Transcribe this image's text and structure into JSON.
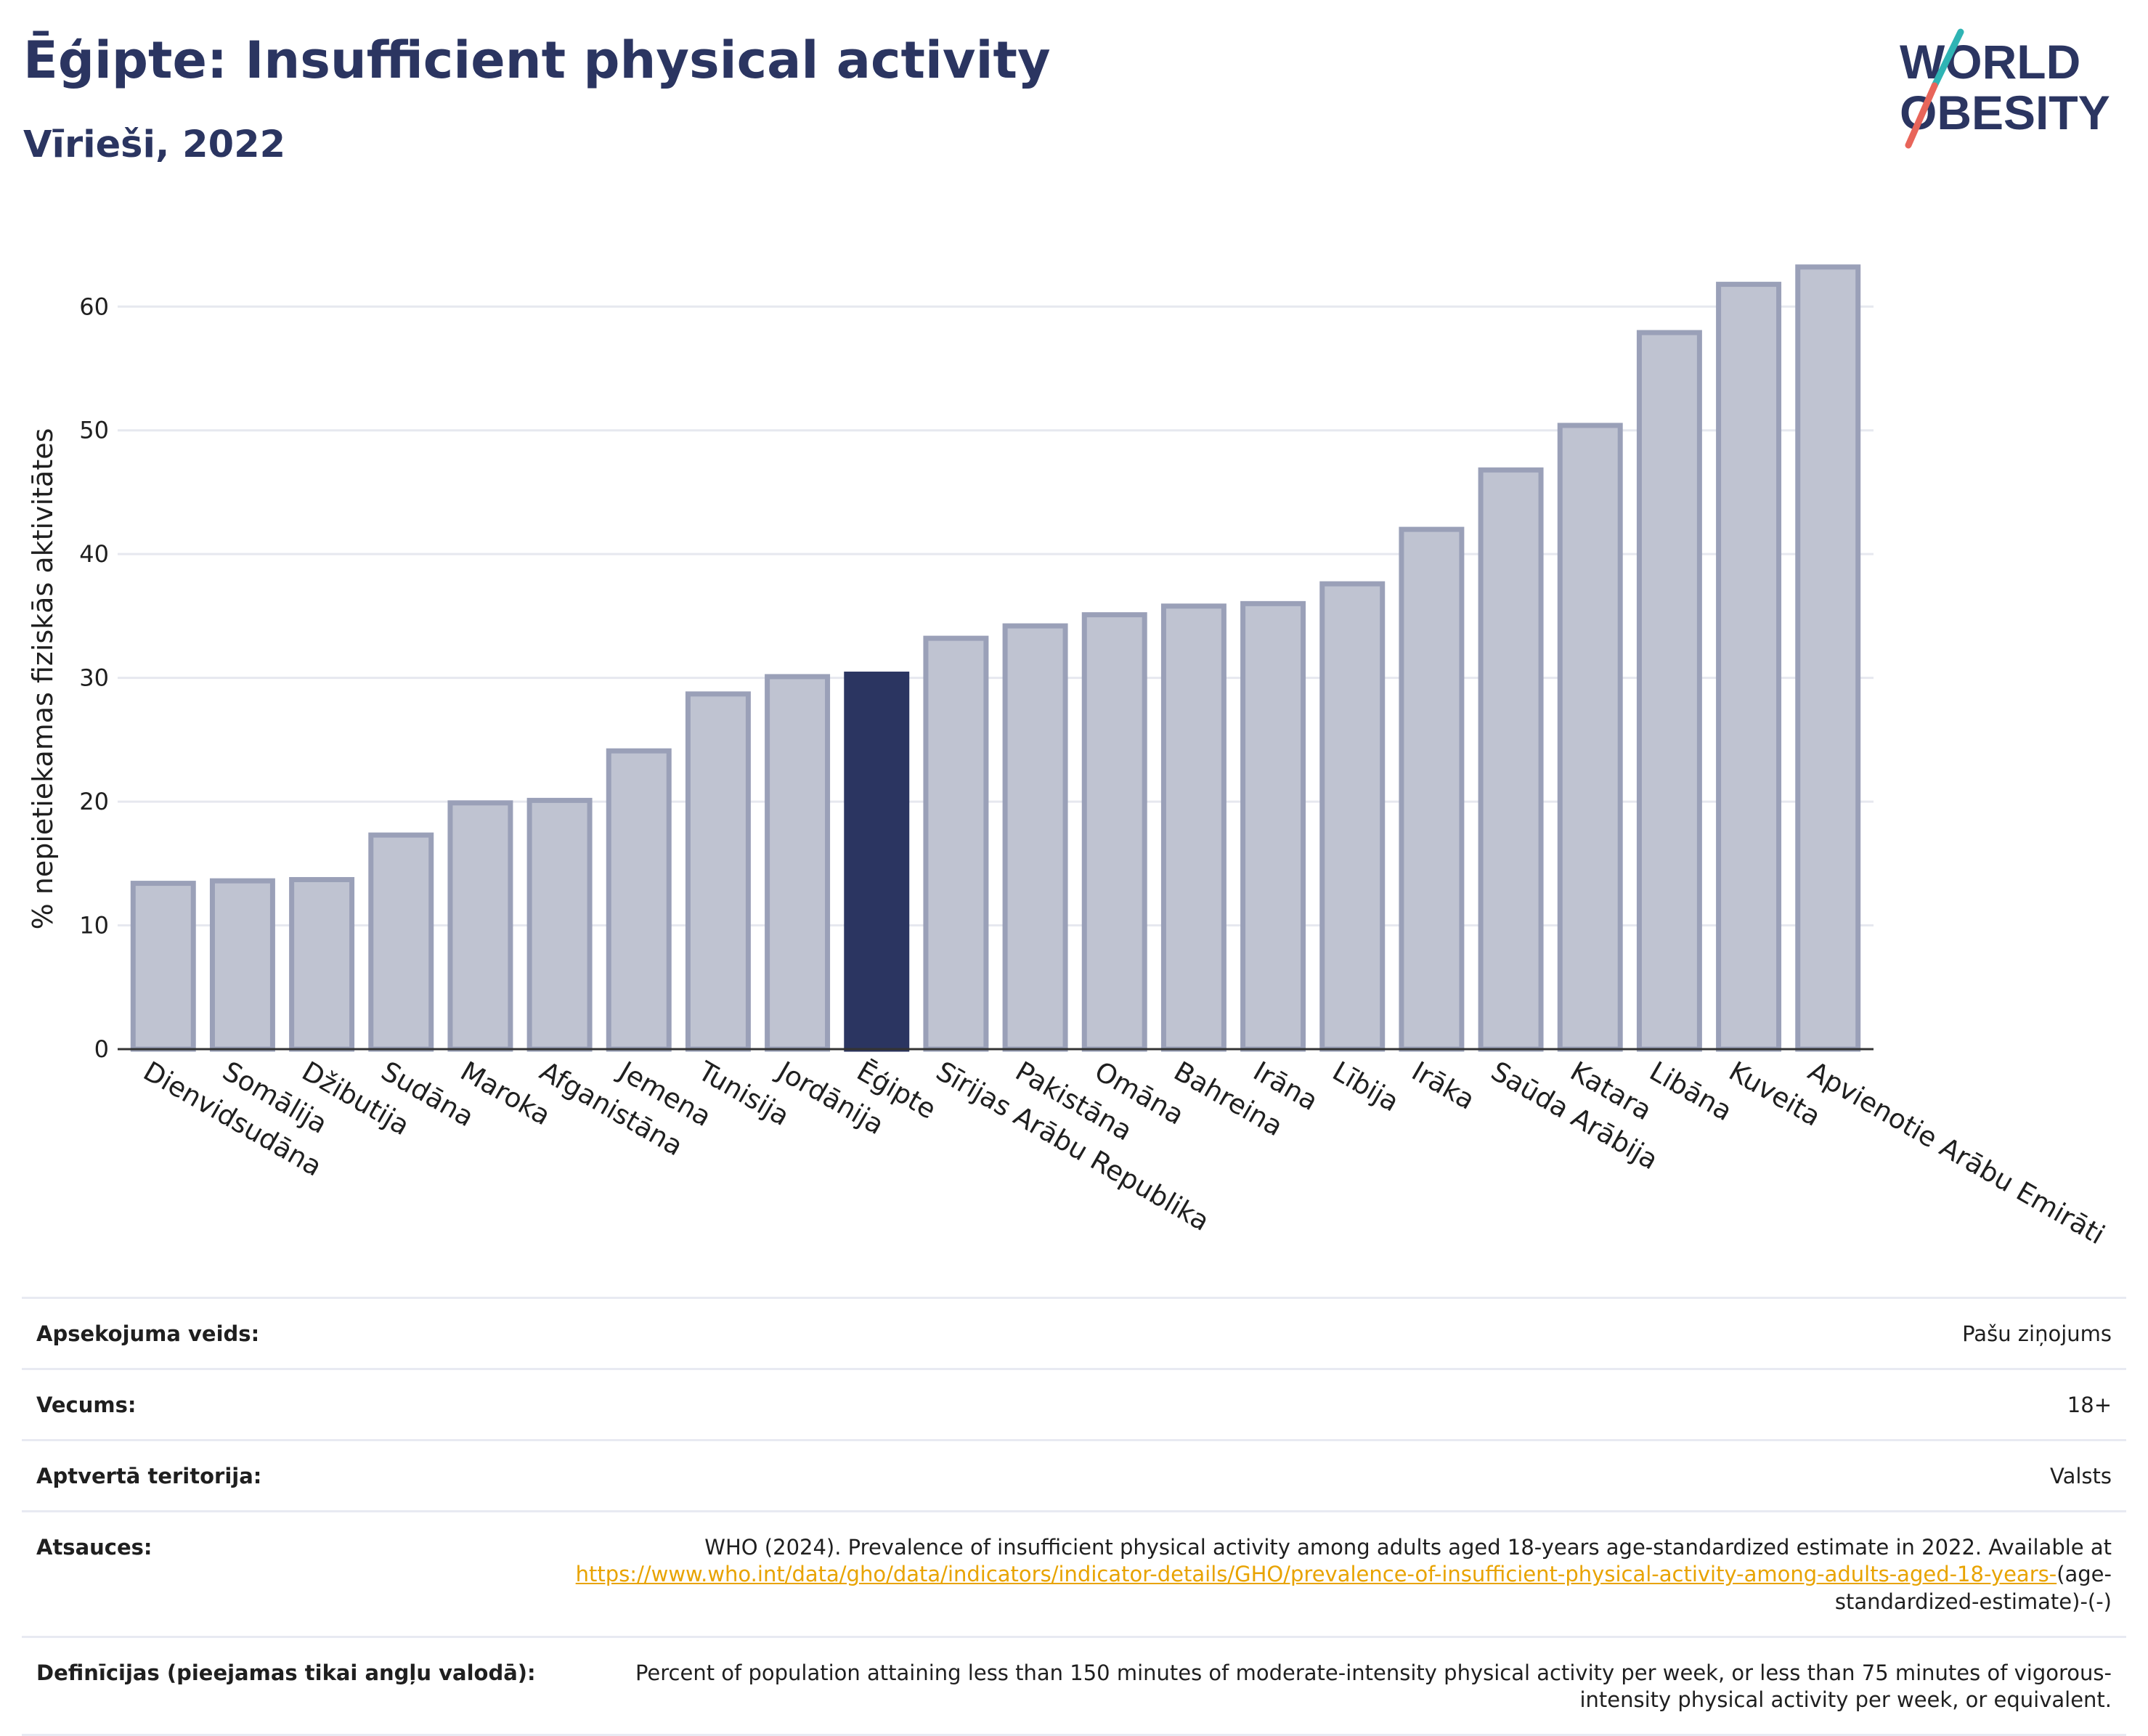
{
  "title": "Ēģipte: Insufficient physical activity",
  "subtitle": "Vīrieši, 2022",
  "logo": {
    "line1": "WORLD",
    "line2": "OBESITY",
    "accent_colors": [
      "#2fb4b4",
      "#e8655a"
    ]
  },
  "colors": {
    "bar": "#bfc3d1",
    "bar_border": "#9aa0b8",
    "highlight": "#2b3561",
    "grid": "#e6e8ef",
    "title": "#2b3561"
  },
  "chart_data": {
    "type": "bar",
    "title": "Ēģipte: Insufficient physical activity",
    "subtitle": "Vīrieši, 2022",
    "ylabel": "% nepietiekamas fiziskās aktivitātes",
    "xlabel": "",
    "ylim": [
      0,
      66
    ],
    "yticks": [
      0,
      10,
      20,
      30,
      40,
      50,
      60
    ],
    "grid": true,
    "highlight": "Ēģipte",
    "categories": [
      "Dienvidsudāna",
      "Somālija",
      "Džibutija",
      "Sudāna",
      "Maroka",
      "Afganistāna",
      "Jemena",
      "Tunisija",
      "Jordānija",
      "Ēģipte",
      "Sīrijas Arābu Republika",
      "Pakistāna",
      "Omāna",
      "Bahreina",
      "Irāna",
      "Lībija",
      "Irāka",
      "Saūda Arābija",
      "Katara",
      "Libāna",
      "Kuveita",
      "Apvienotie Arābu Emirāti"
    ],
    "values": [
      13.4,
      13.6,
      13.7,
      17.3,
      19.9,
      20.1,
      24.1,
      28.7,
      30.1,
      30.3,
      33.2,
      34.2,
      35.1,
      35.8,
      36.0,
      37.6,
      42.0,
      46.8,
      50.4,
      57.9,
      61.8,
      63.2
    ]
  },
  "info": [
    {
      "key": "Apsekojuma veids:",
      "value": "Pašu ziņojums"
    },
    {
      "key": "Vecums:",
      "value": "18+"
    },
    {
      "key": "Aptvertā teritorija:",
      "value": "Valsts"
    },
    {
      "key": "Atsauces:",
      "value": "WHO (2024). Prevalence of insufficient physical activity among adults aged 18-years age-standardized estimate in 2022. Available at",
      "link": "https://www.who.int/data/gho/data/indicators/indicator-details/GHO/prevalence-of-insufficient-physical-activity-among-adults-aged-18-years-",
      "suffix": "(age-standardized-estimate)-(-)"
    },
    {
      "key": "Definīcijas (pieejamas tikai angļu valodā):",
      "value": "Percent of population attaining less than 150 minutes of moderate-intensity physical activity per week, or less than 75 minutes of vigorous-intensity physical activity per week, or equivalent."
    }
  ]
}
